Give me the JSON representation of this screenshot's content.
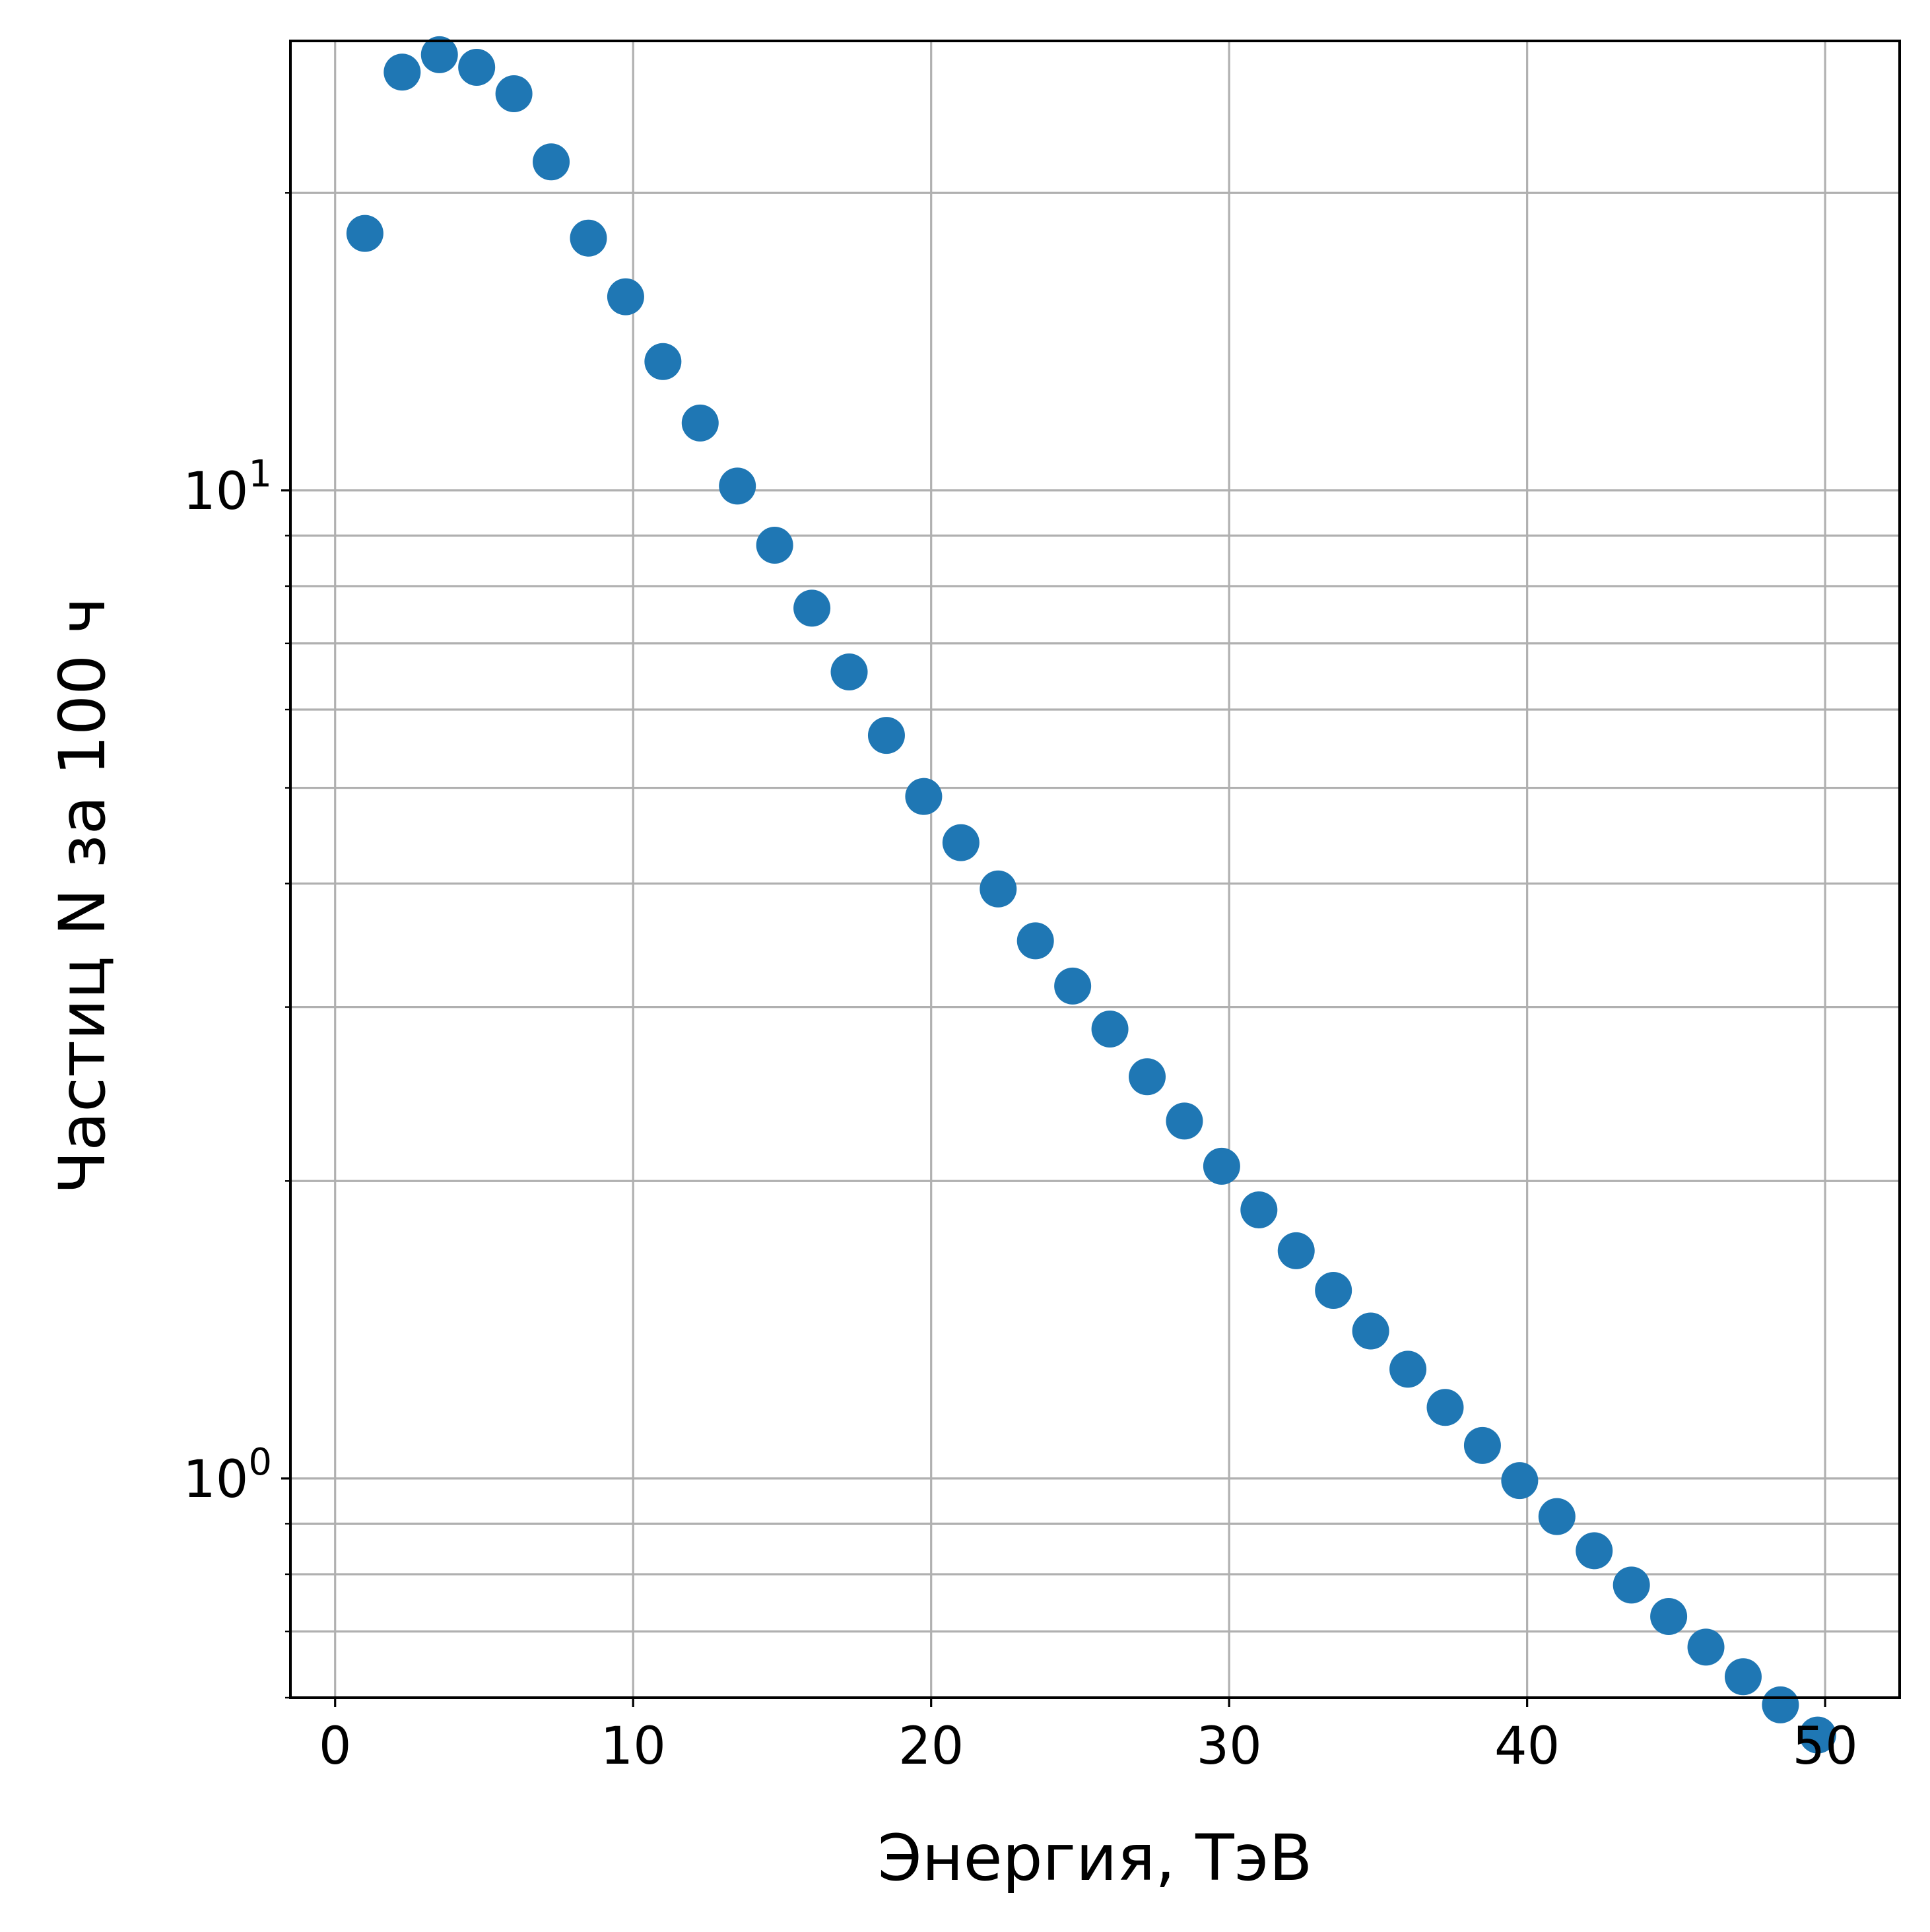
{
  "chart_data": {
    "type": "scatter",
    "title": "",
    "xlabel": "Энергия, ТэВ",
    "ylabel": "Частиц N за 100 ч",
    "xlim": [
      -1.5,
      52.5
    ],
    "ylim": [
      0.6,
      28.5
    ],
    "yscale": "log",
    "grid": true,
    "grid_minor_y": true,
    "x_ticks": [
      0,
      10,
      20,
      30,
      40,
      50
    ],
    "x_tick_labels": [
      "0",
      "10",
      "20",
      "30",
      "40",
      "50"
    ],
    "y_major_ticks": [
      {
        "value": 1,
        "base": "10",
        "exp": "0"
      },
      {
        "value": 10,
        "base": "10",
        "exp": "1"
      }
    ],
    "y_minor_ticks": [
      0.6,
      0.7,
      0.8,
      0.9,
      2,
      3,
      4,
      5,
      6,
      7,
      8,
      9,
      20
    ],
    "marker_color": "#1f77b4",
    "series": [
      {
        "x": [
          1.0,
          2.25,
          3.5,
          4.75,
          6.0,
          7.25,
          8.5,
          9.75,
          11.0,
          12.25,
          13.5,
          14.75,
          16.0,
          17.25,
          18.5,
          19.75,
          21.0,
          22.25,
          23.5,
          24.75,
          26.0,
          27.25,
          28.5,
          29.75,
          31.0,
          32.25,
          33.5,
          34.75,
          36.0,
          37.25,
          38.5,
          39.75,
          41.0,
          42.25,
          43.5,
          44.75,
          46.0,
          47.25,
          48.5,
          49.75
        ],
        "y": [
          18.2,
          26.5,
          27.6,
          26.8,
          25.2,
          21.5,
          18.0,
          15.7,
          13.5,
          11.7,
          10.1,
          8.8,
          7.6,
          6.55,
          5.65,
          4.9,
          4.4,
          3.95,
          3.5,
          3.15,
          2.85,
          2.55,
          2.3,
          2.07,
          1.87,
          1.7,
          1.55,
          1.41,
          1.29,
          1.18,
          1.08,
          0.995,
          0.915,
          0.845,
          0.78,
          0.725,
          0.675,
          0.63,
          0.59,
          0.55
        ]
      }
    ]
  }
}
